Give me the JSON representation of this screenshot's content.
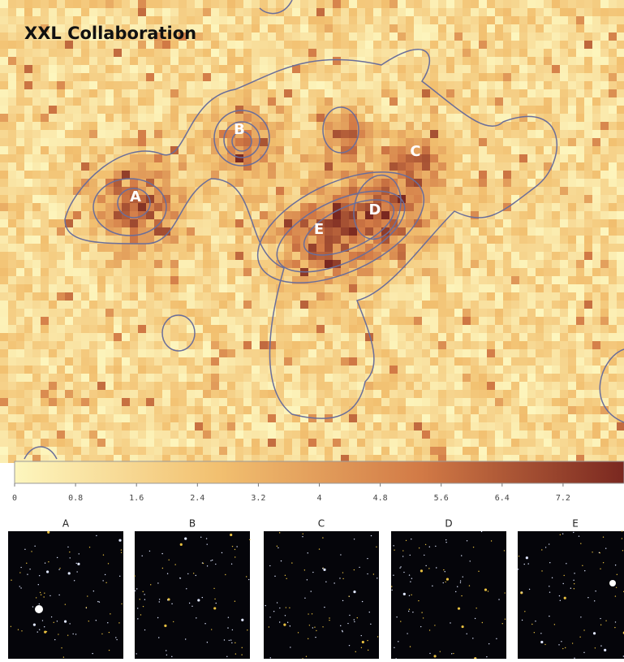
{
  "title": "XXL Collaboration",
  "map_labels": [
    "A",
    "B",
    "C",
    "D",
    "E"
  ],
  "colorbar": {
    "lim": [
      0,
      8
    ],
    "ticks": [
      0,
      0.8,
      1.6,
      2.4,
      3.2,
      4,
      4.8,
      5.6,
      6.4,
      7.2
    ],
    "colors": [
      "#fdf6be",
      "#f2c070",
      "#d27a46",
      "#7a2820"
    ]
  },
  "panels": [
    "A",
    "B",
    "C",
    "D",
    "E"
  ]
}
